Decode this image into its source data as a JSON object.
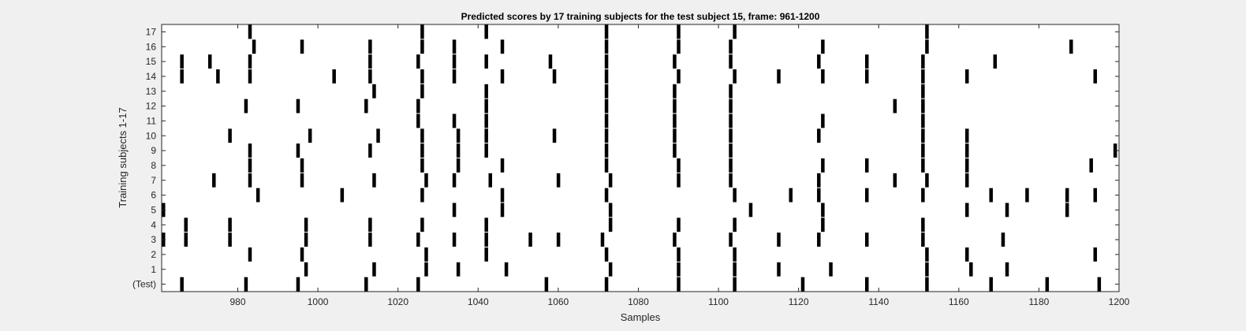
{
  "chart_data": {
    "type": "heatmap",
    "title": "Predicted scores by 17 training subjects for the test subject 15, frame: 961-1200",
    "xlabel": "Samples",
    "ylabel": "Training subjects 1-17",
    "xlim": [
      961,
      1200
    ],
    "x_ticks": [
      980,
      1000,
      1020,
      1040,
      1060,
      1080,
      1100,
      1120,
      1140,
      1160,
      1180,
      1200
    ],
    "y_tick_labels": [
      "(Test)",
      "1",
      "2",
      "3",
      "4",
      "5",
      "6",
      "7",
      "8",
      "9",
      "10",
      "11",
      "12",
      "13",
      "14",
      "15",
      "16",
      "17"
    ],
    "grid": false,
    "bar_color": "#000000",
    "background_color": "#ffffff",
    "rows": [
      {
        "label": "(Test)",
        "events": [
          966,
          982,
          995,
          1012,
          1025,
          1057,
          1072,
          1090,
          1104,
          1121,
          1137,
          1152,
          1168,
          1182,
          1195
        ]
      },
      {
        "label": "1",
        "events": [
          997,
          1014,
          1027,
          1035,
          1047,
          1073,
          1090,
          1104,
          1115,
          1128,
          1152,
          1163,
          1172
        ]
      },
      {
        "label": "2",
        "events": [
          983,
          996,
          1027,
          1042,
          1072,
          1090,
          1104,
          1152,
          1162,
          1194
        ]
      },
      {
        "label": "3",
        "events": [
          961,
          967,
          978,
          997,
          1013,
          1025,
          1034,
          1042,
          1053,
          1060,
          1071,
          1089,
          1103,
          1115,
          1125,
          1137,
          1151,
          1171
        ]
      },
      {
        "label": "4",
        "events": [
          967,
          978,
          997,
          1013,
          1026,
          1042,
          1073,
          1090,
          1104,
          1126,
          1151
        ]
      },
      {
        "label": "5",
        "events": [
          961,
          1034,
          1046,
          1073,
          1108,
          1126,
          1162,
          1172,
          1187
        ]
      },
      {
        "label": "6",
        "events": [
          985,
          1006,
          1026,
          1046,
          1072,
          1104,
          1118,
          1125,
          1137,
          1151,
          1168,
          1177,
          1187,
          1194
        ]
      },
      {
        "label": "7",
        "events": [
          974,
          983,
          996,
          1014,
          1027,
          1034,
          1043,
          1060,
          1073,
          1090,
          1103,
          1125,
          1144,
          1152,
          1162
        ]
      },
      {
        "label": "8",
        "events": [
          983,
          996,
          1026,
          1035,
          1046,
          1072,
          1090,
          1103,
          1126,
          1137,
          1151,
          1162,
          1193
        ]
      },
      {
        "label": "9",
        "events": [
          983,
          995,
          1013,
          1026,
          1035,
          1042,
          1072,
          1089,
          1103,
          1151,
          1162,
          1199
        ]
      },
      {
        "label": "10",
        "events": [
          978,
          998,
          1015,
          1026,
          1035,
          1042,
          1059,
          1072,
          1089,
          1103,
          1125,
          1151,
          1162
        ]
      },
      {
        "label": "11",
        "events": [
          1025,
          1034,
          1042,
          1072,
          1089,
          1103,
          1126,
          1151
        ]
      },
      {
        "label": "12",
        "events": [
          982,
          995,
          1012,
          1025,
          1042,
          1072,
          1089,
          1103,
          1144,
          1151
        ]
      },
      {
        "label": "13",
        "events": [
          1014,
          1026,
          1042,
          1072,
          1089,
          1103,
          1151
        ]
      },
      {
        "label": "14",
        "events": [
          966,
          975,
          983,
          1004,
          1013,
          1026,
          1034,
          1046,
          1059,
          1072,
          1090,
          1104,
          1115,
          1126,
          1137,
          1151,
          1162,
          1194
        ]
      },
      {
        "label": "15",
        "events": [
          966,
          973,
          983,
          1013,
          1025,
          1034,
          1042,
          1058,
          1072,
          1089,
          1103,
          1125,
          1137,
          1151,
          1169
        ]
      },
      {
        "label": "16",
        "events": [
          984,
          996,
          1013,
          1026,
          1034,
          1046,
          1072,
          1090,
          1103,
          1126,
          1152,
          1188
        ]
      },
      {
        "label": "17",
        "events": [
          983,
          1026,
          1042,
          1072,
          1090,
          1104,
          1152
        ]
      }
    ]
  }
}
